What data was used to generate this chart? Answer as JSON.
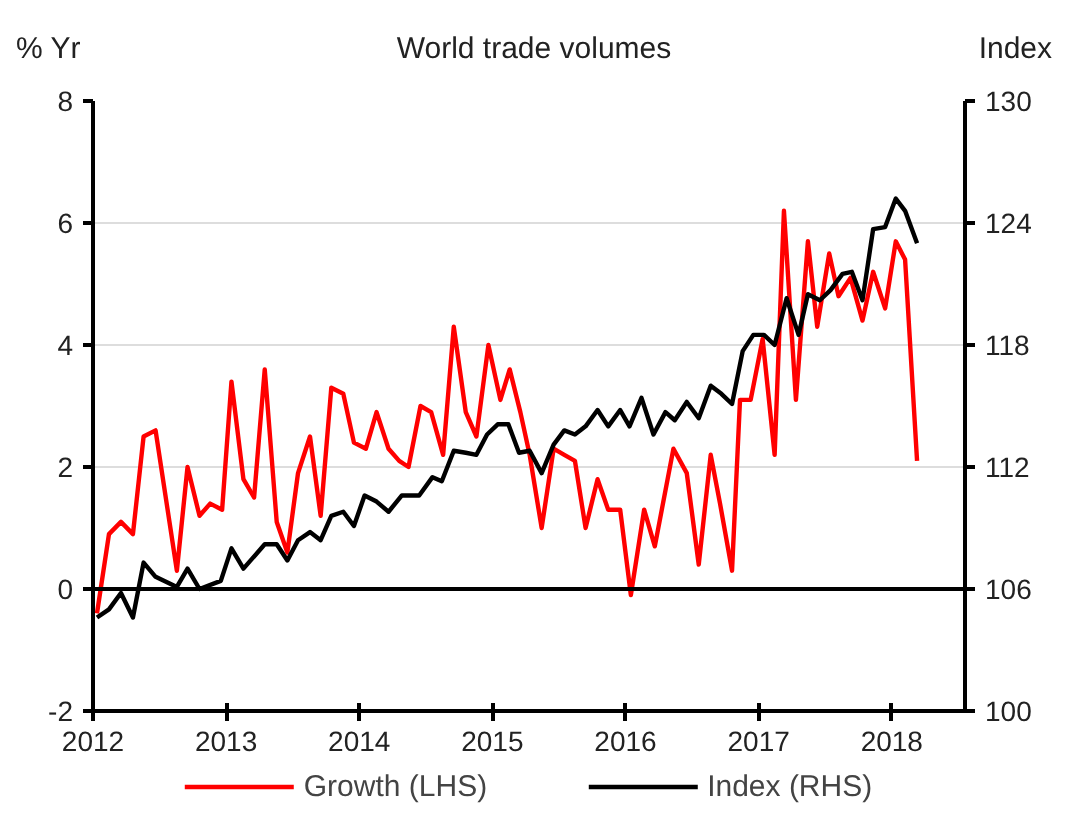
{
  "chart_data": {
    "type": "line",
    "title": "World trade volumes",
    "ylabel": "% Yr",
    "y2label": "Index",
    "xlim": [
      2012,
      2018.55
    ],
    "xticks": [
      2012,
      2013,
      2014,
      2015,
      2016,
      2017,
      2018
    ],
    "ylim": [
      -2,
      8
    ],
    "yticks": [
      -2,
      0,
      2,
      4,
      6,
      8
    ],
    "y2lim": [
      100,
      130
    ],
    "y2ticks": [
      100,
      106,
      112,
      118,
      124,
      130
    ],
    "grid": "y",
    "legend": "bottom",
    "line_style": "solid",
    "ref_lines": [
      {
        "axis": "y",
        "value": 0,
        "color": "#000000"
      }
    ],
    "series": [
      {
        "name": "Growth (LHS)",
        "color": "#ff0000",
        "x": [
          2012.03,
          2012.12,
          2012.21,
          2012.3,
          2012.38,
          2012.47,
          2012.63,
          2012.71,
          2012.8,
          2012.88,
          2012.97,
          2013.04,
          2013.13,
          2013.21,
          2013.29,
          2013.38,
          2013.46,
          2013.54,
          2013.63,
          2013.71,
          2013.79,
          2013.88,
          2013.96,
          2014.05,
          2014.13,
          2014.22,
          2014.3,
          2014.37,
          2014.46,
          2014.54,
          2014.63,
          2014.71,
          2014.8,
          2014.88,
          2014.97,
          2015.06,
          2015.13,
          2015.21,
          2015.28,
          2015.37,
          2015.46,
          2015.54,
          2015.62,
          2015.7,
          2015.79,
          2015.87,
          2015.96,
          2016.04,
          2016.14,
          2016.22,
          2016.36,
          2016.46,
          2016.55,
          2016.64,
          2016.71,
          2016.8,
          2016.86,
          2016.94,
          2017.03,
          2017.12,
          2017.19,
          2017.28,
          2017.37,
          2017.44,
          2017.53,
          2017.6,
          2017.69,
          2017.78,
          2017.86,
          2017.95,
          2018.03,
          2018.1,
          2018.19
        ],
        "values": [
          -0.4,
          0.9,
          1.1,
          0.9,
          2.5,
          2.6,
          0.3,
          2.0,
          1.2,
          1.4,
          1.3,
          3.4,
          1.8,
          1.5,
          3.6,
          1.1,
          0.6,
          1.9,
          2.5,
          1.2,
          3.3,
          3.2,
          2.4,
          2.3,
          2.9,
          2.3,
          2.1,
          2.0,
          3.0,
          2.9,
          2.2,
          4.3,
          2.9,
          2.5,
          4.0,
          3.1,
          3.6,
          2.9,
          2.2,
          1.0,
          2.3,
          2.2,
          2.1,
          1.0,
          1.8,
          1.3,
          1.3,
          -0.1,
          1.3,
          0.7,
          2.3,
          1.9,
          0.4,
          2.2,
          1.4,
          0.3,
          3.1,
          3.1,
          4.1,
          2.2,
          6.2,
          3.1,
          5.7,
          4.3,
          5.5,
          4.8,
          5.1,
          4.4,
          5.2,
          4.6,
          5.7,
          5.4,
          2.1
        ]
      },
      {
        "name": "Index (RHS)",
        "color": "#000000",
        "axis": "y2",
        "x": [
          2012.03,
          2012.12,
          2012.21,
          2012.3,
          2012.38,
          2012.47,
          2012.63,
          2012.71,
          2012.8,
          2012.96,
          2013.04,
          2013.13,
          2013.29,
          2013.38,
          2013.46,
          2013.54,
          2013.63,
          2013.71,
          2013.79,
          2013.88,
          2013.96,
          2014.04,
          2014.13,
          2014.22,
          2014.32,
          2014.45,
          2014.55,
          2014.62,
          2014.71,
          2014.8,
          2014.88,
          2014.96,
          2015.04,
          2015.12,
          2015.2,
          2015.28,
          2015.37,
          2015.46,
          2015.54,
          2015.62,
          2015.7,
          2015.79,
          2015.87,
          2015.96,
          2016.03,
          2016.12,
          2016.21,
          2016.3,
          2016.37,
          2016.46,
          2016.55,
          2016.64,
          2016.72,
          2016.8,
          2016.88,
          2016.96,
          2017.04,
          2017.12,
          2017.21,
          2017.3,
          2017.37,
          2017.46,
          2017.54,
          2017.63,
          2017.7,
          2017.78,
          2017.86,
          2017.95,
          2018.03,
          2018.1,
          2018.19
        ],
        "values": [
          104.6,
          105.0,
          105.8,
          104.6,
          107.3,
          106.6,
          106.1,
          107.0,
          106.0,
          106.4,
          108.0,
          107.0,
          108.2,
          108.2,
          107.4,
          108.4,
          108.8,
          108.4,
          109.6,
          109.8,
          109.1,
          110.6,
          110.3,
          109.8,
          110.6,
          110.6,
          111.5,
          111.3,
          112.8,
          112.7,
          112.6,
          113.6,
          114.1,
          114.1,
          112.7,
          112.8,
          111.7,
          113.1,
          113.8,
          113.6,
          114.0,
          114.8,
          114.0,
          114.8,
          114.0,
          115.4,
          113.6,
          114.7,
          114.3,
          115.2,
          114.4,
          116.0,
          115.6,
          115.1,
          117.7,
          118.5,
          118.5,
          118.0,
          120.3,
          118.5,
          120.5,
          120.2,
          120.7,
          121.5,
          121.6,
          120.2,
          123.7,
          123.8,
          125.2,
          124.6,
          123.0
        ]
      }
    ]
  }
}
